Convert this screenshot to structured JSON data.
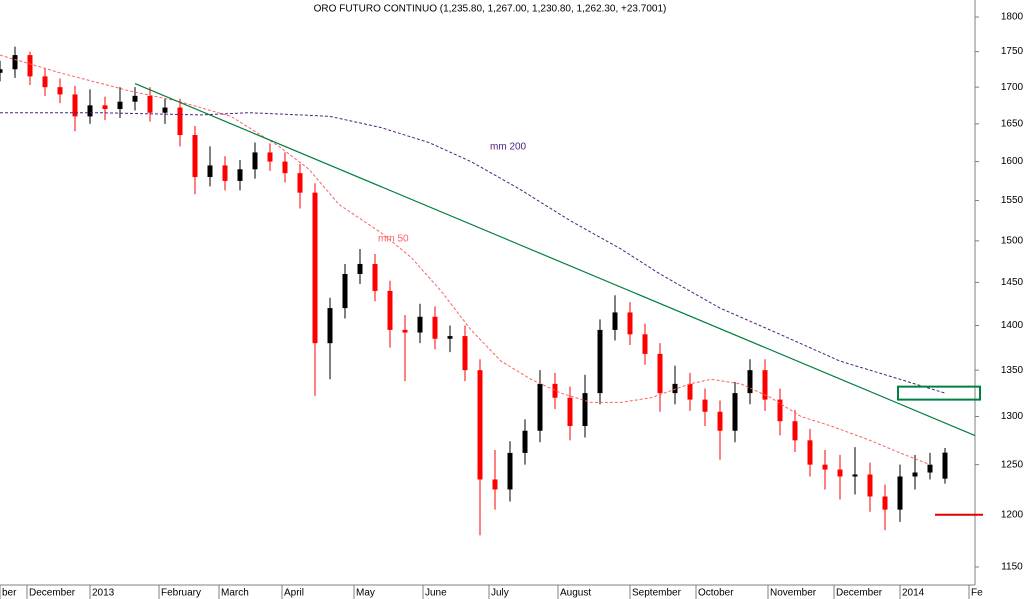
{
  "chart_data": {
    "type": "candlestick",
    "title": "ORO FUTURO CONTINUO (1,235.80, 1,267.00, 1,230.80, 1,262.30, +23.7001)",
    "log_scale": true,
    "up_color": "#000000",
    "down_color": "#ff0000",
    "ylim": [
      1150,
      1800
    ],
    "yticks": [
      1150,
      1200,
      1250,
      1300,
      1350,
      1400,
      1450,
      1500,
      1550,
      1600,
      1650,
      1700,
      1750,
      1800
    ],
    "xlim": [
      0,
      325
    ],
    "xticks": [
      {
        "value": 0,
        "label": "ber"
      },
      {
        "value": 9,
        "label": "December"
      },
      {
        "value": 30,
        "label": "2013"
      },
      {
        "value": 53,
        "label": "February"
      },
      {
        "value": 73,
        "label": "March"
      },
      {
        "value": 94,
        "label": "April"
      },
      {
        "value": 118,
        "label": "May"
      },
      {
        "value": 141,
        "label": "June"
      },
      {
        "value": 163,
        "label": "July"
      },
      {
        "value": 186,
        "label": "August"
      },
      {
        "value": 210,
        "label": "September"
      },
      {
        "value": 232,
        "label": "October"
      },
      {
        "value": 256,
        "label": "November"
      },
      {
        "value": 278,
        "label": "December"
      },
      {
        "value": 300,
        "label": "2014"
      },
      {
        "value": 323,
        "label": "Fe"
      }
    ],
    "x": [
      0,
      5,
      10,
      15,
      20,
      25,
      30,
      35,
      40,
      45,
      50,
      55,
      60,
      65,
      70,
      75,
      80,
      85,
      90,
      95,
      100,
      105,
      110,
      115,
      120,
      125,
      130,
      135,
      140,
      145,
      150,
      155,
      160,
      165,
      170,
      175,
      180,
      185,
      190,
      195,
      200,
      205,
      210,
      215,
      220,
      225,
      230,
      235,
      240,
      245,
      250,
      255,
      260,
      265,
      270,
      275,
      280,
      285,
      290,
      295,
      300,
      305,
      310,
      315
    ],
    "open": [
      1720,
      1725,
      1745,
      1715,
      1700,
      1690,
      1660,
      1675,
      1670,
      1680,
      1688,
      1665,
      1672,
      1635,
      1580,
      1595,
      1575,
      1590,
      1612,
      1600,
      1585,
      1560,
      1380,
      1420,
      1460,
      1472,
      1440,
      1395,
      1392,
      1410,
      1385,
      1388,
      1350,
      1235,
      1225,
      1262,
      1285,
      1335,
      1320,
      1290,
      1325,
      1395,
      1415,
      1390,
      1368,
      1325,
      1335,
      1318,
      1305,
      1285,
      1325,
      1350,
      1318,
      1295,
      1275,
      1250,
      1245,
      1238,
      1240,
      1218,
      1205,
      1238,
      1242,
      1235.8
    ],
    "high": [
      1737,
      1757,
      1750,
      1727,
      1712,
      1702,
      1697,
      1687,
      1700,
      1700,
      1700,
      1684,
      1684,
      1647,
      1620,
      1607,
      1602,
      1625,
      1624,
      1612,
      1597,
      1572,
      1432,
      1472,
      1490,
      1484,
      1452,
      1412,
      1425,
      1422,
      1400,
      1400,
      1362,
      1265,
      1274,
      1297,
      1350,
      1347,
      1332,
      1345,
      1407,
      1435,
      1427,
      1402,
      1380,
      1355,
      1347,
      1330,
      1317,
      1337,
      1362,
      1362,
      1330,
      1307,
      1287,
      1265,
      1260,
      1268,
      1252,
      1230,
      1250,
      1260,
      1262,
      1267
    ],
    "low": [
      1708,
      1713,
      1703,
      1688,
      1678,
      1640,
      1650,
      1655,
      1658,
      1668,
      1653,
      1650,
      1620,
      1558,
      1568,
      1563,
      1563,
      1578,
      1588,
      1573,
      1540,
      1322,
      1340,
      1408,
      1448,
      1428,
      1375,
      1338,
      1380,
      1373,
      1370,
      1338,
      1180,
      1205,
      1213,
      1250,
      1273,
      1308,
      1275,
      1278,
      1313,
      1383,
      1378,
      1356,
      1305,
      1313,
      1306,
      1290,
      1255,
      1273,
      1313,
      1306,
      1280,
      1263,
      1238,
      1225,
      1215,
      1220,
      1203,
      1185,
      1193,
      1225,
      1235,
      1230.8
    ],
    "close": [
      1725,
      1745,
      1715,
      1700,
      1690,
      1660,
      1675,
      1670,
      1680,
      1688,
      1665,
      1672,
      1635,
      1580,
      1595,
      1575,
      1590,
      1612,
      1600,
      1585,
      1560,
      1380,
      1420,
      1460,
      1472,
      1440,
      1395,
      1392,
      1410,
      1385,
      1388,
      1350,
      1235,
      1225,
      1262,
      1285,
      1335,
      1320,
      1290,
      1325,
      1395,
      1415,
      1390,
      1368,
      1325,
      1335,
      1318,
      1305,
      1285,
      1325,
      1350,
      1318,
      1295,
      1275,
      1250,
      1245,
      1238,
      1240,
      1218,
      1205,
      1238,
      1242,
      1250,
      1262.3
    ],
    "lines": [
      {
        "name": "mm 50",
        "color": "#ff6060",
        "x": [
          0,
          20,
          43,
          60,
          77,
          93,
          103,
          113,
          127,
          137,
          147,
          157,
          167,
          177,
          187,
          197,
          207,
          217,
          230,
          237,
          247,
          257,
          267,
          277,
          290,
          300,
          310
        ],
        "values": [
          1745,
          1720,
          1695,
          1680,
          1660,
          1620,
          1590,
          1545,
          1510,
          1480,
          1440,
          1395,
          1360,
          1340,
          1325,
          1315,
          1315,
          1320,
          1335,
          1340,
          1335,
          1320,
          1300,
          1290,
          1275,
          1262,
          1250
        ]
      },
      {
        "name": "mm 200",
        "color": "#502080",
        "x": [
          0,
          33,
          67,
          83,
          100,
          110,
          127,
          143,
          157,
          173,
          190,
          207,
          220,
          240,
          260,
          280,
          300,
          315
        ],
        "values": [
          1665,
          1665,
          1662,
          1665,
          1662,
          1660,
          1645,
          1625,
          1600,
          1565,
          1525,
          1490,
          1460,
          1420,
          1390,
          1360,
          1340,
          1325
        ]
      }
    ],
    "trendline": {
      "color": "#008040",
      "x": [
        45,
        325
      ],
      "values": [
        1705,
        1280
      ]
    },
    "target_zone": [
      1318,
      1332
    ],
    "support_level": 1200
  }
}
